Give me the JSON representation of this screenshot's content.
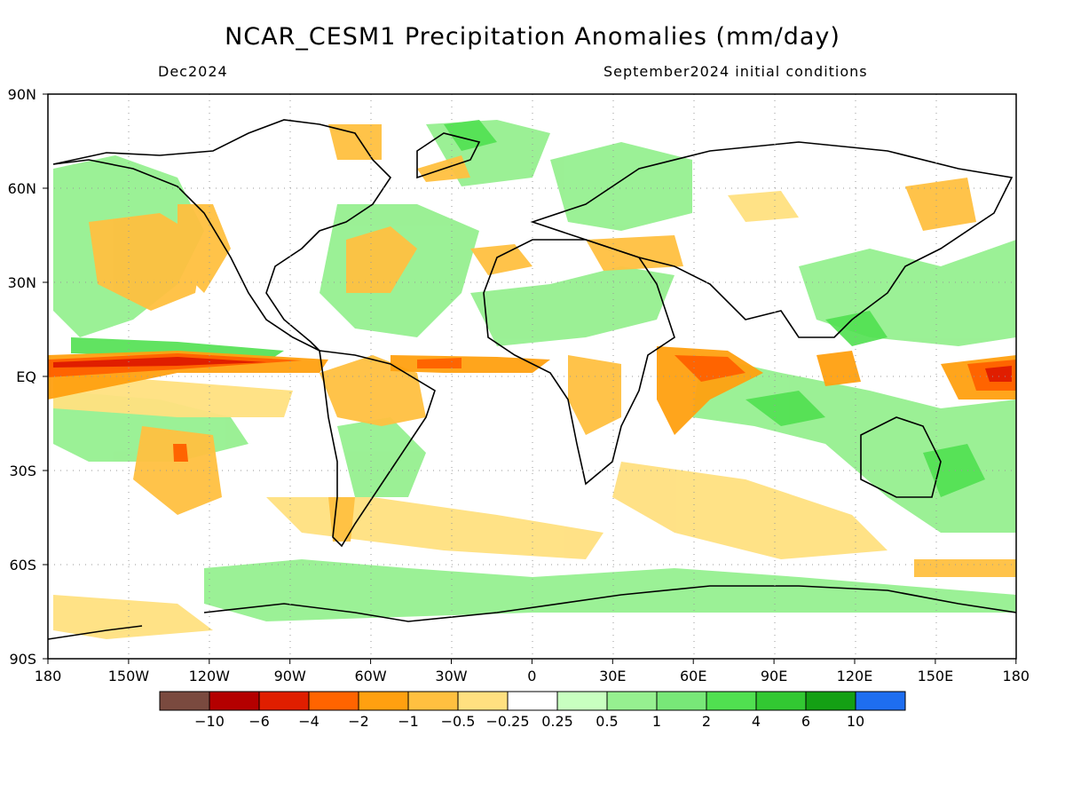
{
  "title": "NCAR_CESM1 Precipitation Anomalies (mm/day)",
  "valid_month": "Dec2024",
  "initial_conditions": "September2024 initial conditions",
  "lat_ticks": [
    "90N",
    "60N",
    "30N",
    "EQ",
    "30S",
    "60S",
    "90S"
  ],
  "lon_ticks": [
    "180",
    "150W",
    "120W",
    "90W",
    "60W",
    "30W",
    "0",
    "30E",
    "60E",
    "90E",
    "120E",
    "150E",
    "180"
  ],
  "colorbar": {
    "colors": [
      "#7a4a3f",
      "#b40000",
      "#e01e00",
      "#ff6400",
      "#ffa010",
      "#ffc040",
      "#ffe080",
      "#ffffff",
      "#c8ffc0",
      "#96f090",
      "#78e878",
      "#50e050",
      "#32c832",
      "#14a014",
      "#1e6ef0"
    ],
    "labels": [
      "−10",
      "−6",
      "−4",
      "−2",
      "−1",
      "−0.5",
      "−0.25",
      "0.25",
      "0.5",
      "1",
      "2",
      "4",
      "6",
      "10"
    ]
  }
}
